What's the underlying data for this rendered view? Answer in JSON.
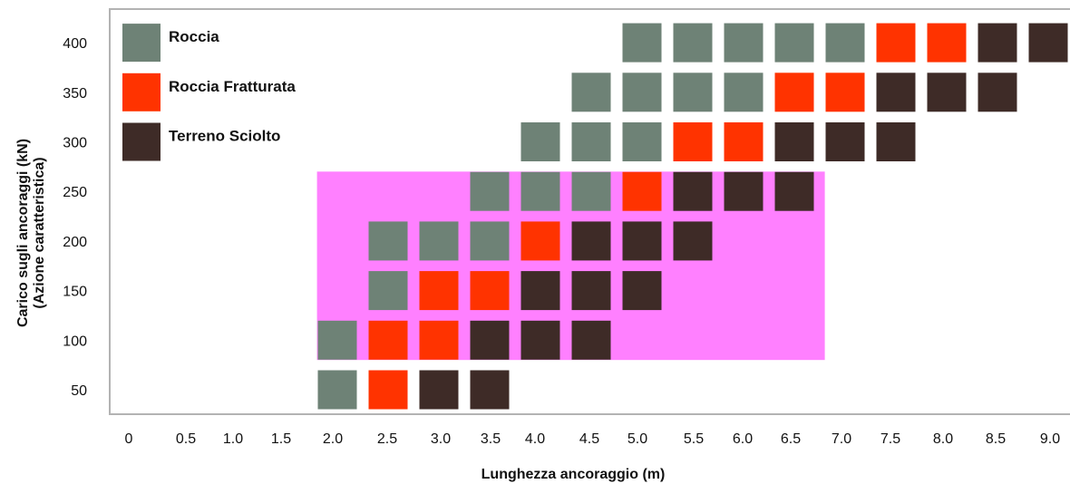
{
  "chart_data": {
    "type": "heatmap",
    "xlabel": "Lunghezza ancoraggio (m)",
    "ylabel": [
      "Carico sugli ancoraggi (kN)",
      "(Azione caratteristica)"
    ],
    "x_ticks": [
      "0",
      "0.5",
      "1.0",
      "1.5",
      "2.0",
      "2.5",
      "3.0",
      "3.5",
      "4.0",
      "4.5",
      "5.0",
      "5.5",
      "6.0",
      "6.5",
      "7.0",
      "7.5",
      "8.0",
      "8.5",
      "9.0"
    ],
    "y_ticks": [
      "400",
      "350",
      "300",
      "250",
      "200",
      "150",
      "100",
      "50"
    ],
    "categories": {
      "R": {
        "name": "Roccia",
        "color": "#6e8276"
      },
      "F": {
        "name": "Roccia Fratturata",
        "color": "#ff3300"
      },
      "T": {
        "name": "Terreno Sciolto",
        "color": "#3e2b27"
      }
    },
    "highlight": {
      "color": "#ff80ff",
      "x_range": [
        1.8,
        6.8
      ],
      "y_range": [
        80,
        270
      ]
    },
    "rows": [
      {
        "load": 400,
        "start": 5.0,
        "cells": [
          "R",
          "R",
          "R",
          "R",
          "R",
          "F",
          "F",
          "T",
          "T"
        ]
      },
      {
        "load": 350,
        "start": 4.5,
        "cells": [
          "R",
          "R",
          "R",
          "R",
          "F",
          "F",
          "T",
          "T",
          "T"
        ]
      },
      {
        "load": 300,
        "start": 4.0,
        "cells": [
          "R",
          "R",
          "R",
          "F",
          "F",
          "T",
          "T",
          "T"
        ]
      },
      {
        "load": 250,
        "start": 3.5,
        "cells": [
          "R",
          "R",
          "R",
          "F",
          "T",
          "T",
          "T"
        ]
      },
      {
        "load": 200,
        "start": 2.5,
        "cells": [
          "R",
          "R",
          "R",
          "F",
          "T",
          "T",
          "T"
        ]
      },
      {
        "load": 150,
        "start": 2.5,
        "cells": [
          "R",
          "F",
          "F",
          "T",
          "T",
          "T"
        ]
      },
      {
        "load": 100,
        "start": 2.0,
        "cells": [
          "R",
          "F",
          "F",
          "T",
          "T",
          "T"
        ]
      },
      {
        "load": 50,
        "start": 2.0,
        "cells": [
          "R",
          "F",
          "T",
          "T"
        ]
      }
    ],
    "legend": [
      "R",
      "F",
      "T"
    ],
    "legend_position": "top-left"
  }
}
